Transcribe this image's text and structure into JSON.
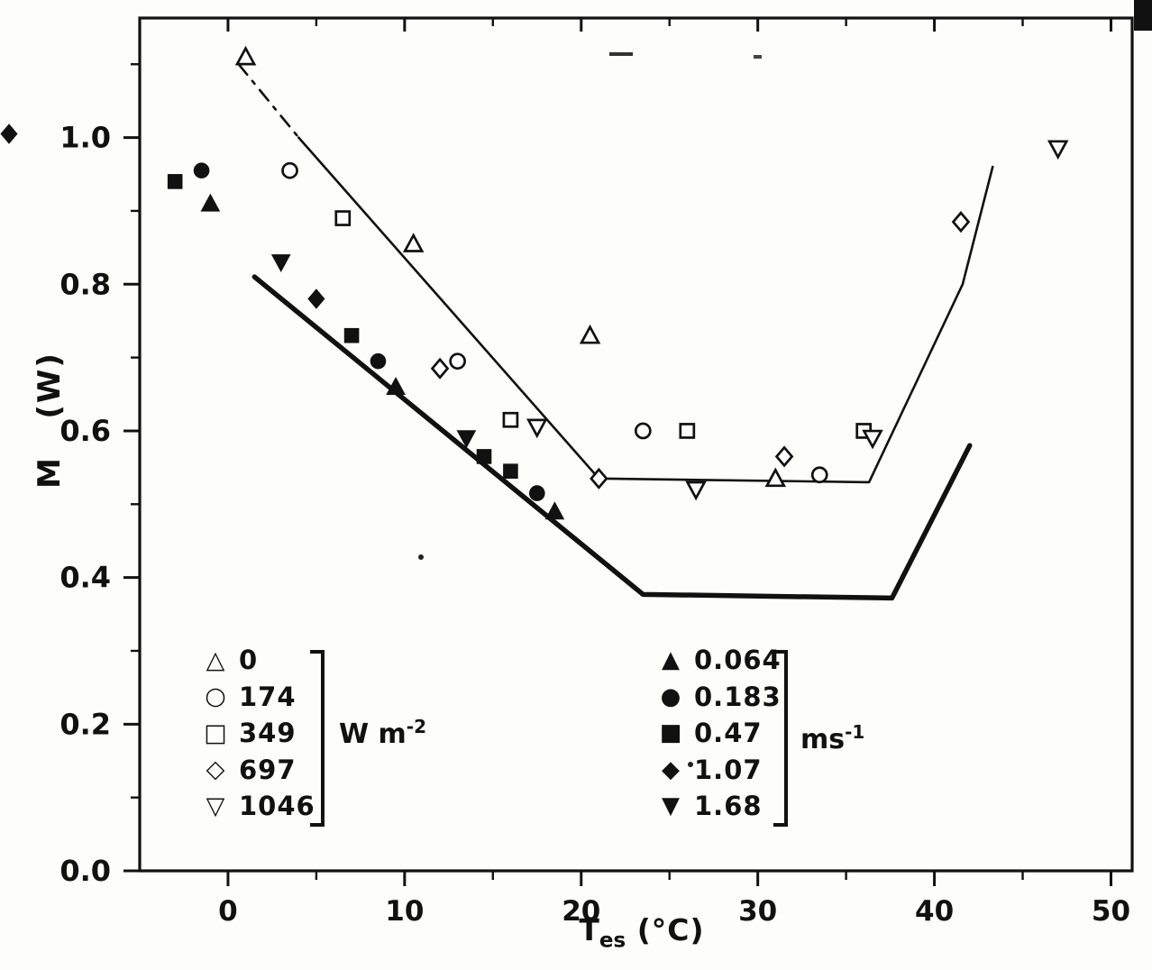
{
  "figure": {
    "background": "#fdfdfb",
    "ink": "#111111"
  },
  "axes": {
    "ylabel": "M   (W)",
    "xlabel_t": "T",
    "xlabel_sub": "es",
    "xlabel_unit": " (°C)",
    "x_tick_labels": [
      "0",
      "10",
      "20",
      "30",
      "40",
      "50"
    ],
    "y_tick_labels": [
      "0.0",
      "0.2",
      "0.4",
      "0.6",
      "0.8",
      "1.0"
    ]
  },
  "legend": {
    "left": {
      "items": [
        {
          "glyph": "△",
          "label": "0"
        },
        {
          "glyph": "○",
          "label": "174"
        },
        {
          "glyph": "□",
          "label": "349"
        },
        {
          "glyph": "◇",
          "label": "697"
        },
        {
          "glyph": "▽",
          "label": "1046"
        }
      ],
      "unit_base": "W m",
      "unit_sup": "-2"
    },
    "right": {
      "items": [
        {
          "glyph": "▲",
          "label": "0.064"
        },
        {
          "glyph": "●",
          "label": "0.183"
        },
        {
          "glyph": "■",
          "label": "0.47"
        },
        {
          "glyph": "◆",
          "label": "1.07"
        },
        {
          "glyph": "▼",
          "label": "1.68"
        }
      ],
      "unit_base": "ms",
      "unit_sup": "-1"
    }
  },
  "chart_data": {
    "type": "scatter",
    "title": "",
    "xlabel": "T_es (°C)",
    "ylabel": "M (W)",
    "xlim": [
      -5,
      51.2
    ],
    "ylim": [
      0,
      1.163
    ],
    "x_ticks": [
      0,
      10,
      20,
      30,
      40,
      50
    ],
    "x_minor": [
      5,
      15,
      25,
      35,
      45
    ],
    "y_ticks": [
      0,
      0.2,
      0.4,
      0.6,
      0.8,
      1.0
    ],
    "y_minor": [
      0.1,
      0.3,
      0.5,
      0.7,
      0.9,
      1.1
    ],
    "grid": false,
    "legend_position": "lower-left-inside",
    "series": [
      {
        "name": "0",
        "group": "W m^-2",
        "marker": "triangle-up",
        "fill": "open",
        "points": [
          [
            1,
            1.11
          ],
          [
            10.5,
            0.855
          ],
          [
            20.5,
            0.73
          ],
          [
            31,
            0.535
          ]
        ]
      },
      {
        "name": "174",
        "group": "W m^-2",
        "marker": "circle",
        "fill": "open",
        "points": [
          [
            3.5,
            0.955
          ],
          [
            13,
            0.695
          ],
          [
            23.5,
            0.6
          ],
          [
            33.5,
            0.54
          ]
        ]
      },
      {
        "name": "349",
        "group": "W m^-2",
        "marker": "square",
        "fill": "open",
        "points": [
          [
            6.5,
            0.89
          ],
          [
            16,
            0.615
          ],
          [
            26,
            0.6
          ],
          [
            36,
            0.6
          ]
        ]
      },
      {
        "name": "697",
        "group": "W m^-2",
        "marker": "diamond",
        "fill": "open",
        "points": [
          [
            12,
            0.685
          ],
          [
            21,
            0.535
          ],
          [
            31.5,
            0.565
          ],
          [
            41.5,
            0.885
          ]
        ]
      },
      {
        "name": "1046",
        "group": "W m^-2",
        "marker": "triangle-down",
        "fill": "open",
        "points": [
          [
            17.5,
            0.605
          ],
          [
            26.5,
            0.52
          ],
          [
            36.5,
            0.59
          ],
          [
            47,
            0.985
          ]
        ]
      },
      {
        "name": "0.064",
        "group": "m s^-1",
        "marker": "triangle-up",
        "fill": "solid",
        "points": [
          [
            -1,
            0.91
          ],
          [
            9.5,
            0.66
          ],
          [
            18.5,
            0.49
          ]
        ]
      },
      {
        "name": "0.183",
        "group": "m s^-1",
        "marker": "circle",
        "fill": "solid",
        "points": [
          [
            -1.5,
            0.955
          ],
          [
            8.5,
            0.695
          ],
          [
            17.5,
            0.515
          ]
        ]
      },
      {
        "name": "0.47",
        "group": "m s^-1",
        "marker": "square",
        "fill": "solid",
        "points": [
          [
            -3,
            0.94
          ],
          [
            7,
            0.73
          ],
          [
            14.5,
            0.565
          ],
          [
            16,
            0.545
          ]
        ]
      },
      {
        "name": "1.07",
        "group": "m s^-1",
        "marker": "diamond",
        "fill": "solid",
        "points": [
          [
            -12.4,
            1.005
          ],
          [
            5,
            0.78
          ]
        ]
      },
      {
        "name": "1.68",
        "group": "m s^-1",
        "marker": "triangle-down",
        "fill": "solid",
        "points": [
          [
            3,
            0.83
          ],
          [
            13.5,
            0.59
          ]
        ]
      }
    ],
    "lines": [
      {
        "name": "upper-thin-line-dashed-start",
        "width": 2.6,
        "dash": "15 9 4 9",
        "points": [
          [
            0.6,
            1.1
          ],
          [
            4,
            1.0
          ]
        ]
      },
      {
        "name": "upper-thin-line",
        "width": 2.6,
        "points": [
          [
            4,
            1.0
          ],
          [
            21,
            0.535
          ],
          [
            36.3,
            0.53
          ],
          [
            41.6,
            0.8
          ],
          [
            43.3,
            0.96
          ]
        ]
      },
      {
        "name": "lower-thick-line",
        "width": 5.5,
        "points": [
          [
            1.5,
            0.81
          ],
          [
            23.5,
            0.377
          ],
          [
            37.6,
            0.372
          ],
          [
            42,
            0.58
          ]
        ]
      }
    ]
  }
}
